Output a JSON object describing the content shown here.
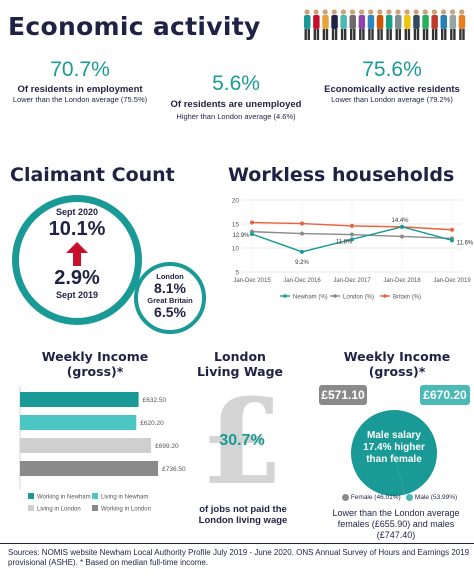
{
  "header": {
    "title": "Economic activity"
  },
  "stats": [
    {
      "value": "70.7%",
      "label": "Of residents in employment",
      "sub": "Lower than the London average (75.5%)"
    },
    {
      "value": "5.6%",
      "label": "Of residents are unemployed",
      "sub": "Higher than London average (4.6%)"
    },
    {
      "value": "75.6%",
      "label": "Economically active residents",
      "sub": "Lower than London average (79.2%)"
    }
  ],
  "claimant": {
    "title": "Claimant Count",
    "date_top": "Sept 2020",
    "value_top": "10.1%",
    "value_bottom": "2.9%",
    "date_bottom": "Sept 2019",
    "london_label": "London",
    "london_value": "8.1%",
    "gb_label": "Great Britain",
    "gb_value": "6.5%"
  },
  "workless": {
    "title": "Workless households"
  },
  "weekly_income_bars": {
    "title": "Weekly Income (gross)*"
  },
  "living_wage": {
    "title": "London Living Wage",
    "value": "30.7%",
    "caption": "of jobs not paid the London living wage"
  },
  "weekly_income_pie": {
    "title": "Weekly Income (gross)*",
    "female_badge": "£571.10",
    "male_badge": "£670.20",
    "circle_text": "Male salary 17.4% higher than female",
    "caption": "Lower than the London average females (£655.90) and males (£747.40)"
  },
  "footer": {
    "text": "Sources: NOMIS website Newham Local Authority Profile July 2019 - June 2020. ONS Annual Survey of Hours and Earnings 2019 provisional (ASHE). * Based on  median  full-time income."
  },
  "colors": {
    "navy": "#1f2244",
    "teal": "#1a9a96",
    "red": "#c8102e",
    "orange": "#e8603c",
    "grey": "#8a8a8a"
  },
  "chart_data": [
    {
      "type": "line",
      "x": [
        "Jan-Dec 2015",
        "Jan-Dec 2016",
        "Jan-Dec 2017",
        "Jan-Dec 2018",
        "Jan-Dec 2019"
      ],
      "ylim": [
        5,
        20
      ],
      "yticks": [
        "5",
        "10",
        "15",
        "20"
      ],
      "grid": true,
      "legend": "bottom",
      "series": [
        {
          "name": "Newham (%)",
          "color": "#1a9a96",
          "values": [
            12.9,
            9.2,
            11.8,
            14.4,
            11.6
          ]
        },
        {
          "name": "London (%)",
          "color": "#8a8a8a",
          "values": [
            13.4,
            13.0,
            12.8,
            12.4,
            12.0
          ]
        },
        {
          "name": "Britain (%)",
          "color": "#e8603c",
          "values": [
            15.3,
            15.1,
            14.6,
            14.4,
            13.8
          ]
        }
      ],
      "annotations": [
        {
          "label": "12.9%",
          "series": "Newham (%)",
          "index": 0
        },
        {
          "label": "9.2%",
          "series": "Newham (%)",
          "index": 1
        },
        {
          "label": "11.8%",
          "series": "Newham (%)",
          "index": 2
        },
        {
          "label": "14.4%",
          "series": "Newham (%)",
          "index": 3
        },
        {
          "label": "11.6%",
          "series": "Newham (%)",
          "index": 4
        }
      ]
    },
    {
      "type": "bar",
      "orientation": "horizontal",
      "categories": [
        "Working in Newham",
        "Living in Newham",
        "Living in London",
        "Working in London"
      ],
      "values": [
        632.5,
        620.2,
        699.2,
        736.5
      ],
      "value_labels": [
        "£632.50",
        "£620.20",
        "£699.20",
        "£736.50"
      ],
      "colors": [
        "#1a9a96",
        "#4bc7c3",
        "#cfcfcf",
        "#8a8a8a"
      ],
      "legend": "bottom"
    },
    {
      "type": "pie",
      "categories": [
        "Female (46.01%)",
        "Male (53.99%)"
      ],
      "values": [
        46.01,
        53.99
      ],
      "colors": [
        "#8a8a8a",
        "#4bb9b6"
      ],
      "legend": "bottom"
    }
  ]
}
